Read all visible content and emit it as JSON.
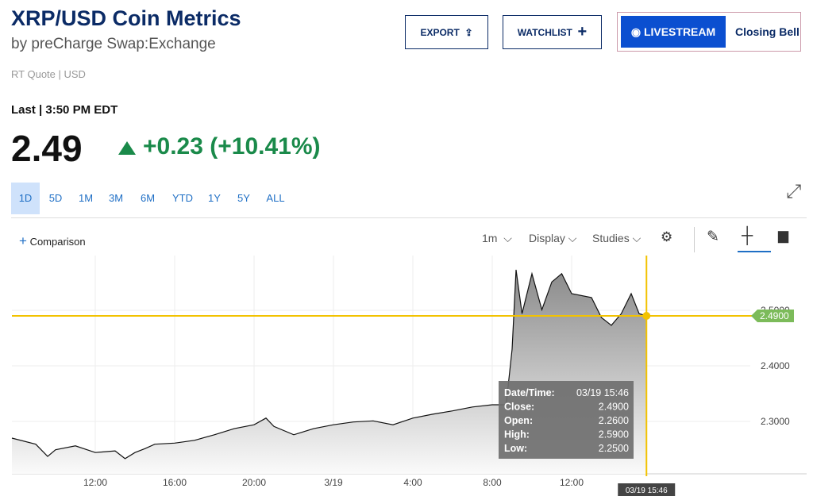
{
  "header": {
    "title": "XRP/USD Coin Metrics",
    "subtitle": "by preCharge Swap:Exchange",
    "quote_type": "RT Quote | USD",
    "last_label": "Last | 3:50 PM EDT",
    "price": "2.49",
    "change": "+0.23 (+10.41%)"
  },
  "buttons": {
    "export": "EXPORT",
    "watchlist": "WATCHLIST",
    "livestream": "LIVESTREAM",
    "closing_bell": "Closing Bell"
  },
  "ranges": [
    "1D",
    "5D",
    "1M",
    "3M",
    "6M",
    "YTD",
    "1Y",
    "5Y",
    "ALL"
  ],
  "toolbar": {
    "comparison": "Comparison",
    "interval": "1m",
    "display": "Display",
    "studies": "Studies"
  },
  "chart_data": {
    "type": "area",
    "color": "#111111",
    "x": [
      7.8,
      9,
      9.6,
      10,
      11,
      12,
      13,
      13.5,
      14,
      14.5,
      15,
      16,
      17,
      18,
      19,
      20,
      20.6,
      21,
      22,
      23,
      24,
      25,
      26,
      27,
      28,
      29,
      30,
      31,
      32,
      32.7,
      33,
      33.2,
      33.5,
      34,
      34.5,
      35,
      35.5,
      36,
      37,
      37.5,
      38,
      38.5,
      39,
      39.4,
      39.77
    ],
    "values": [
      2.27,
      2.259,
      2.237,
      2.249,
      2.256,
      2.244,
      2.247,
      2.233,
      2.244,
      2.251,
      2.259,
      2.261,
      2.266,
      2.276,
      2.287,
      2.294,
      2.306,
      2.291,
      2.276,
      2.287,
      2.294,
      2.299,
      2.301,
      2.294,
      2.306,
      2.313,
      2.319,
      2.326,
      2.33,
      2.33,
      2.43,
      2.573,
      2.494,
      2.566,
      2.501,
      2.551,
      2.566,
      2.53,
      2.523,
      2.487,
      2.473,
      2.494,
      2.53,
      2.494,
      2.49
    ],
    "xlim": [
      7.8,
      45
    ],
    "ylim": [
      2.2057,
      2.5986
    ],
    "xticks": [
      {
        "value": 12,
        "label": "12:00"
      },
      {
        "value": 16,
        "label": "16:00"
      },
      {
        "value": 20,
        "label": "20:00"
      },
      {
        "value": 24,
        "label": "3/19"
      },
      {
        "value": 28,
        "label": "4:00"
      },
      {
        "value": 32,
        "label": "8:00"
      },
      {
        "value": 36,
        "label": "12:00"
      }
    ],
    "yticks": [
      {
        "value": 2.3,
        "label": "2.3000"
      },
      {
        "value": 2.4,
        "label": "2.4000"
      },
      {
        "value": 2.5,
        "label": "2.5000"
      }
    ],
    "grid": true,
    "price_label": "2.4900",
    "time_label": "03/19 15:46"
  },
  "tooltip": {
    "rows": [
      [
        "Date/Time:",
        "03/19 15:46"
      ],
      [
        "Close:",
        "2.4900"
      ],
      [
        "Open:",
        "2.2600"
      ],
      [
        "High:",
        "2.5900"
      ],
      [
        "Low:",
        "2.2500"
      ]
    ]
  }
}
